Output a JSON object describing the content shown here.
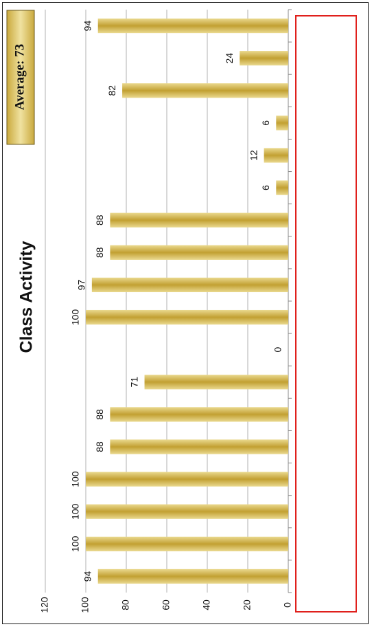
{
  "chart_data": {
    "type": "bar",
    "title": "Class Activity",
    "badge": "Average: 73",
    "values": [
      94,
      100,
      100,
      100,
      88,
      88,
      71,
      0,
      100,
      97,
      88,
      88,
      6,
      12,
      6,
      82,
      24,
      94
    ],
    "ylim": [
      0,
      120
    ],
    "yticks": [
      0,
      20,
      40,
      60,
      80,
      100,
      120
    ],
    "grid": true,
    "orientation": "rotated-90",
    "legend": "none"
  },
  "colors": {
    "bar_light": "#ead98f",
    "bar_dark": "#c2a032",
    "grid": "#b0b0b0",
    "axis": "#888888",
    "legend_box": "#e0201c"
  }
}
